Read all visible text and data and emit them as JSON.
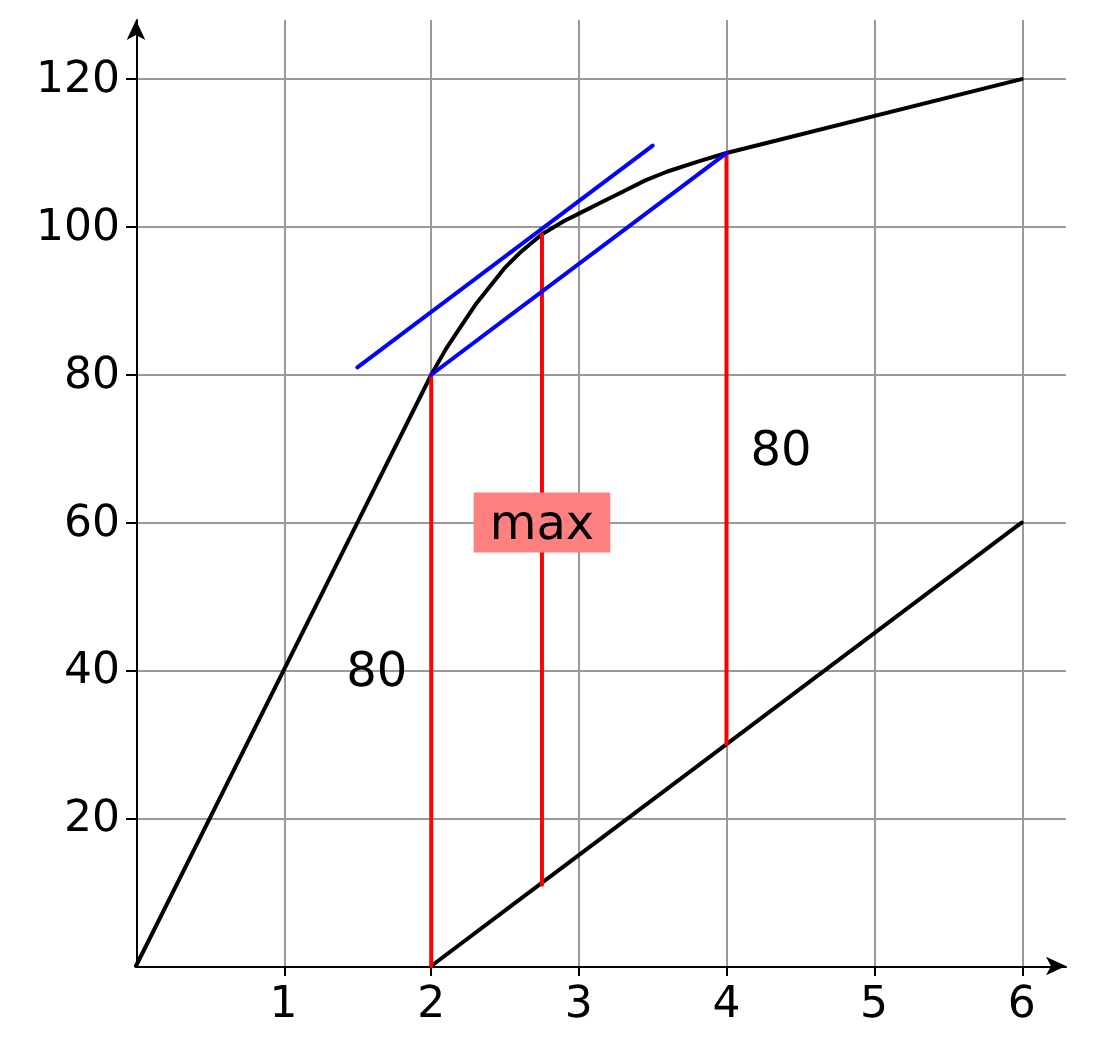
{
  "chart_data": {
    "type": "line",
    "xlim": [
      0,
      6.3
    ],
    "ylim": [
      0,
      128
    ],
    "xticks": [
      1,
      2,
      3,
      4,
      5,
      6
    ],
    "yticks": [
      20,
      40,
      60,
      80,
      100,
      120
    ],
    "grid": true,
    "marker": "none",
    "series": [
      {
        "color": "#000000",
        "x": [
          0,
          2,
          2.1,
          2.2,
          2.3,
          2.4,
          2.5,
          2.6,
          2.75,
          2.9,
          3,
          3.15,
          3.3,
          3.45,
          3.6,
          3.8,
          4,
          6
        ],
        "values": [
          0,
          80,
          83.5,
          86.5,
          89.5,
          92,
          94.5,
          96.5,
          99,
          100.8,
          101.8,
          103.3,
          104.8,
          106.3,
          107.5,
          108.8,
          110,
          120
        ]
      },
      {
        "color": "#000000",
        "x": [
          2,
          6
        ],
        "values": [
          0,
          60
        ]
      },
      {
        "color": "#ff0000",
        "x": [
          2,
          2
        ],
        "values": [
          0,
          80
        ]
      },
      {
        "color": "#ff0000",
        "x": [
          2.75,
          2.75
        ],
        "values": [
          11,
          99
        ]
      },
      {
        "color": "#ff0000",
        "x": [
          4,
          4
        ],
        "values": [
          30,
          110
        ]
      },
      {
        "color": "#0000ff",
        "x": [
          2,
          4
        ],
        "values": [
          80,
          110
        ]
      },
      {
        "color": "#0000ff",
        "x": [
          1.5,
          3.5
        ],
        "values": [
          81,
          111
        ]
      }
    ],
    "annotations": [
      {
        "text": "80",
        "x": 2,
        "y": 40
      },
      {
        "text": "max",
        "x": 2.75,
        "y": 60
      },
      {
        "text": "80",
        "x": 4,
        "y": 70
      }
    ]
  }
}
